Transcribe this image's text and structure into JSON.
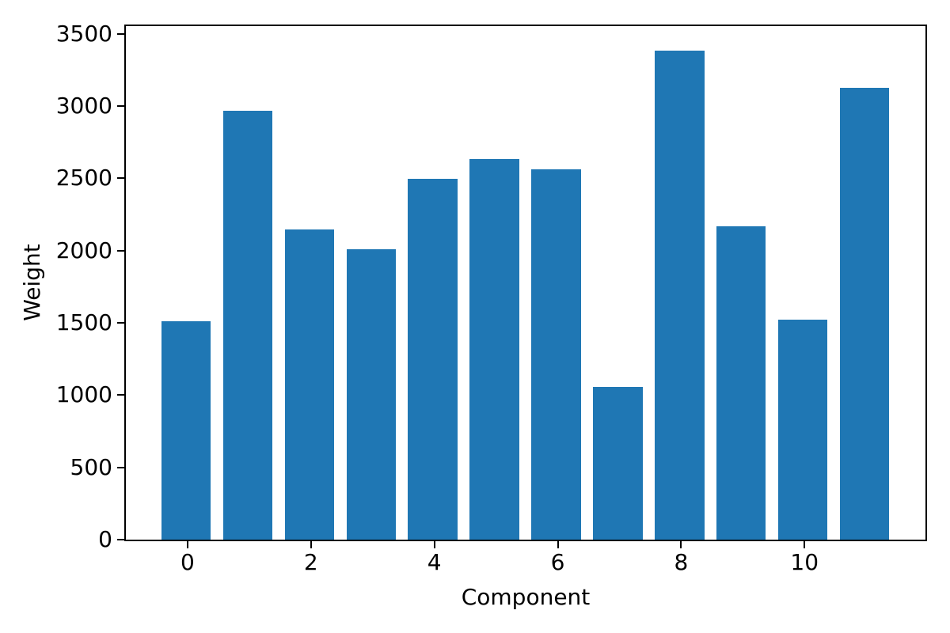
{
  "chart_data": {
    "type": "bar",
    "title": "",
    "xlabel": "Component",
    "ylabel": "Weight",
    "categories": [
      0,
      1,
      2,
      3,
      4,
      5,
      6,
      7,
      8,
      9,
      10,
      11
    ],
    "values": [
      1510,
      2965,
      2145,
      2010,
      2495,
      2635,
      2560,
      1055,
      3380,
      2170,
      1520,
      3125
    ],
    "bar_color": "#1f77b4",
    "bar_width": 0.8,
    "xlim": [
      -1.0,
      11.96
    ],
    "ylim": [
      0,
      3552
    ],
    "x_ticks": [
      0,
      2,
      4,
      6,
      8,
      10
    ],
    "y_ticks": [
      0,
      500,
      1000,
      1500,
      2000,
      2500,
      3000,
      3500
    ],
    "grid": false
  }
}
